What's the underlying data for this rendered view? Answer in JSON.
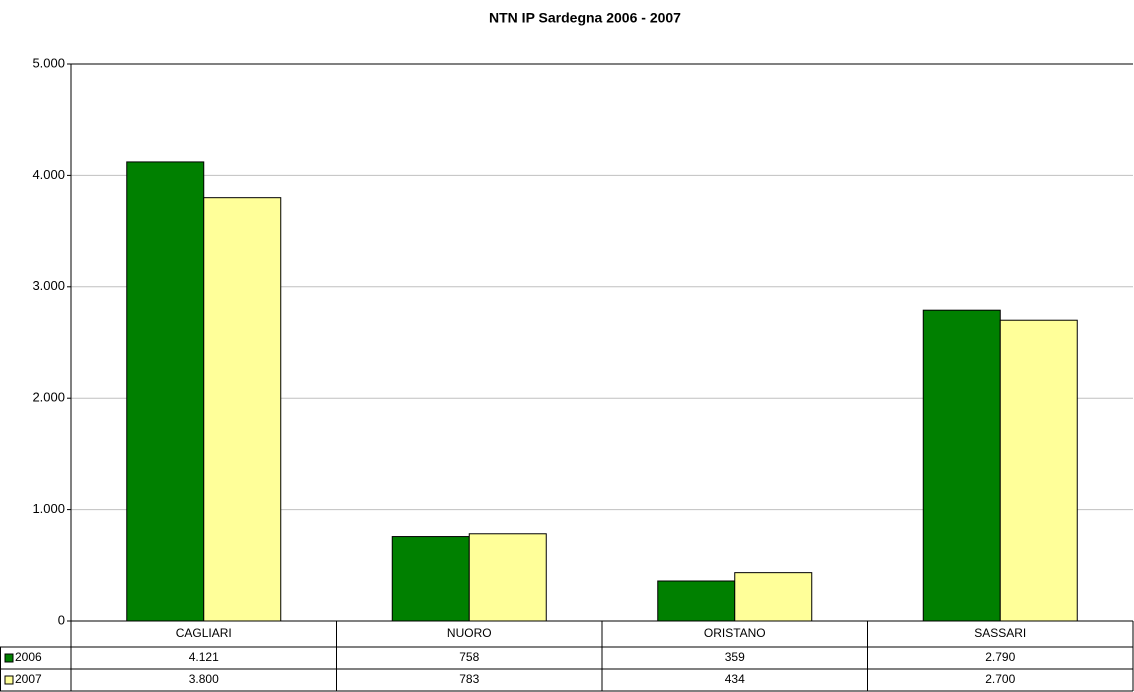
{
  "chart_data": {
    "type": "bar",
    "title": "NTN IP Sardegna  2006 - 2007",
    "categories": [
      "CAGLIARI",
      "NUORO",
      "ORISTANO",
      "SASSARI"
    ],
    "series": [
      {
        "name": "2006",
        "color": "#008000",
        "values": [
          4121,
          758,
          359,
          2790
        ],
        "value_labels": [
          "4.121",
          "758",
          "359",
          "2.790"
        ]
      },
      {
        "name": "2007",
        "color": "#ffff99",
        "values": [
          3800,
          783,
          434,
          2700
        ],
        "value_labels": [
          "3.800",
          "783",
          "434",
          "2.700"
        ]
      }
    ],
    "ylim": [
      0,
      5000
    ],
    "yticks": [
      0,
      {
        "value": 1000,
        "label": "1.000"
      },
      {
        "value": 2000,
        "label": "2.000"
      },
      {
        "value": 3000,
        "label": "3.000"
      },
      {
        "value": 4000,
        "label": "4.000"
      },
      {
        "value": 5000,
        "label": "5.000"
      }
    ],
    "grid": true
  }
}
